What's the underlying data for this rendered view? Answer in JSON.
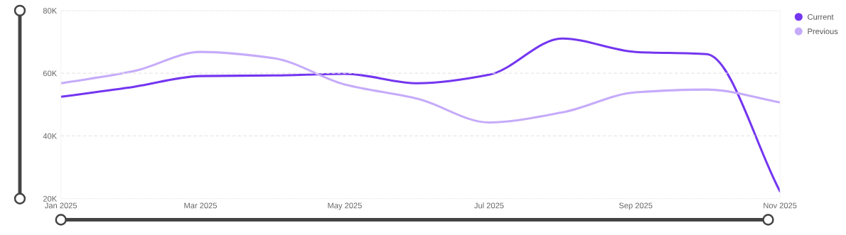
{
  "chart_data": {
    "type": "line",
    "x": [
      "2025-01",
      "2025-02",
      "2025-03",
      "2025-04",
      "2025-05",
      "2025-06",
      "2025-07",
      "2025-08",
      "2025-09",
      "2025-10",
      "2025-11"
    ],
    "series": [
      {
        "name": "Current",
        "color": "#7436f0",
        "values": [
          52.5,
          55.7,
          59.1,
          59.3,
          59.8,
          56.8,
          59.5,
          71.1,
          66.8,
          66.1,
          22.3
        ]
      },
      {
        "name": "Previous",
        "color": "#c6abfa",
        "values": [
          56.8,
          60.7,
          66.8,
          64.8,
          56.4,
          51.8,
          44.3,
          47.5,
          53.9,
          54.8,
          50.7
        ]
      }
    ],
    "xlim": [
      "2025-01",
      "2025-11"
    ],
    "xticks": [
      {
        "value": "2025-01",
        "label": "Jan 2025"
      },
      {
        "value": "2025-03",
        "label": "Mar 2025"
      },
      {
        "value": "2025-05",
        "label": "May 2025"
      },
      {
        "value": "2025-07",
        "label": "Jul 2025"
      },
      {
        "value": "2025-09",
        "label": "Sep 2025"
      },
      {
        "value": "2025-11",
        "label": "Nov 2025"
      }
    ],
    "ylim": [
      20,
      80
    ],
    "yticks": [
      {
        "value": 20,
        "label": "20K"
      },
      {
        "value": 40,
        "label": "40K"
      },
      {
        "value": 60,
        "label": "60K"
      },
      {
        "value": 80,
        "label": "80K"
      }
    ],
    "grid": "y",
    "legend": "top right",
    "marker": "none",
    "line_style": "solid"
  }
}
